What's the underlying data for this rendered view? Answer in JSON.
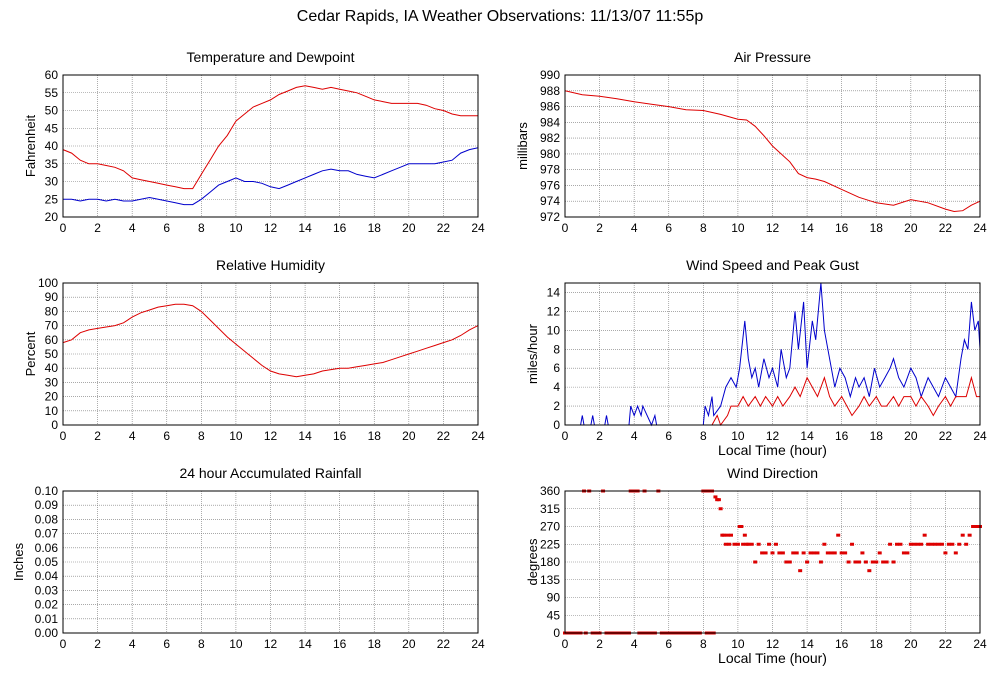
{
  "title": "Cedar Rapids, IA Weather Observations: 11/13/07 11:55p",
  "colors": {
    "red": "#dd0000",
    "blue": "#0000cc",
    "grid": "#777777",
    "frame": "#000000"
  },
  "chart_data": [
    {
      "id": "temp",
      "type": "line",
      "title": "Temperature and Dewpoint",
      "xlabel": "",
      "ylabel": "Fahrenheit",
      "xlim": [
        0,
        24
      ],
      "ylim": [
        20,
        60
      ],
      "xticks": [
        0,
        2,
        4,
        6,
        8,
        10,
        12,
        14,
        16,
        18,
        20,
        22,
        24
      ],
      "yticks": [
        20,
        25,
        30,
        35,
        40,
        45,
        50,
        55,
        60
      ],
      "grid": true,
      "series": [
        {
          "color": "#dd0000",
          "x": [
            0,
            0.5,
            1,
            1.5,
            2,
            2.5,
            3,
            3.5,
            4,
            4.5,
            5,
            5.5,
            6,
            6.5,
            7,
            7.5,
            8,
            8.5,
            9,
            9.5,
            10,
            10.5,
            11,
            11.5,
            12,
            12.5,
            13,
            13.5,
            14,
            14.5,
            15,
            15.5,
            16,
            16.5,
            17,
            17.5,
            18,
            18.5,
            19,
            19.5,
            20,
            20.5,
            21,
            21.5,
            22,
            22.5,
            23,
            23.5,
            24
          ],
          "y": [
            39,
            38,
            36,
            35,
            35,
            34.5,
            34,
            33,
            31,
            30.5,
            30,
            29.5,
            29,
            28.5,
            28,
            28,
            32,
            36,
            40,
            43,
            47,
            49,
            51,
            52,
            53,
            54.5,
            55.5,
            56.5,
            57,
            56.5,
            56,
            56.5,
            56,
            55.5,
            55,
            54,
            53,
            52.5,
            52,
            52,
            52,
            52,
            51.5,
            50.5,
            50,
            49,
            48.5,
            48.5,
            48.5
          ]
        },
        {
          "color": "#0000cc",
          "x": [
            0,
            0.5,
            1,
            1.5,
            2,
            2.5,
            3,
            3.5,
            4,
            4.5,
            5,
            5.5,
            6,
            6.5,
            7,
            7.5,
            8,
            8.5,
            9,
            9.5,
            10,
            10.5,
            11,
            11.5,
            12,
            12.5,
            13,
            13.5,
            14,
            14.5,
            15,
            15.5,
            16,
            16.5,
            17,
            17.5,
            18,
            18.5,
            19,
            19.5,
            20,
            20.5,
            21,
            21.5,
            22,
            22.5,
            23,
            23.5,
            24
          ],
          "y": [
            25,
            25,
            24.5,
            25,
            25,
            24.5,
            25,
            24.5,
            24.5,
            25,
            25.5,
            25,
            24.5,
            24,
            23.5,
            23.5,
            25,
            27,
            29,
            30,
            31,
            30,
            30,
            29.5,
            28.5,
            28,
            29,
            30,
            31,
            32,
            33,
            33.5,
            33,
            33,
            32,
            31.5,
            31,
            32,
            33,
            34,
            35,
            35,
            35,
            35,
            35.5,
            36,
            38,
            39,
            39.5
          ]
        }
      ]
    },
    {
      "id": "pressure",
      "type": "line",
      "title": "Air Pressure",
      "xlabel": "",
      "ylabel": "millibars",
      "xlim": [
        0,
        24
      ],
      "ylim": [
        972,
        990
      ],
      "xticks": [
        0,
        2,
        4,
        6,
        8,
        10,
        12,
        14,
        16,
        18,
        20,
        22,
        24
      ],
      "yticks": [
        972,
        974,
        976,
        978,
        980,
        982,
        984,
        986,
        988,
        990
      ],
      "grid": true,
      "series": [
        {
          "color": "#dd0000",
          "x": [
            0,
            1,
            2,
            3,
            4,
            5,
            6,
            7,
            8,
            9,
            10,
            10.5,
            11,
            11.5,
            12,
            12.5,
            13,
            13.5,
            14,
            14.5,
            15,
            16,
            17,
            18,
            19,
            20,
            21,
            22,
            22.5,
            23,
            23.5,
            24
          ],
          "y": [
            988,
            987.5,
            987.3,
            987,
            986.6,
            986.3,
            986,
            985.6,
            985.5,
            985,
            984.4,
            984.3,
            983.5,
            982.3,
            981,
            980,
            979,
            977.5,
            977,
            976.8,
            976.5,
            975.5,
            974.5,
            973.8,
            973.5,
            974.2,
            973.8,
            973,
            972.7,
            972.8,
            973.5,
            974
          ]
        }
      ]
    },
    {
      "id": "humidity",
      "type": "line",
      "title": "Relative Humidity",
      "xlabel": "",
      "ylabel": "Percent",
      "xlim": [
        0,
        24
      ],
      "ylim": [
        0,
        100
      ],
      "xticks": [
        0,
        2,
        4,
        6,
        8,
        10,
        12,
        14,
        16,
        18,
        20,
        22,
        24
      ],
      "yticks": [
        0,
        10,
        20,
        30,
        40,
        50,
        60,
        70,
        80,
        90,
        100
      ],
      "grid": true,
      "series": [
        {
          "color": "#dd0000",
          "x": [
            0,
            0.5,
            1,
            1.5,
            2,
            2.5,
            3,
            3.5,
            4,
            4.5,
            5,
            5.5,
            6,
            6.5,
            7,
            7.5,
            8,
            8.5,
            9,
            9.5,
            10,
            10.5,
            11,
            11.5,
            12,
            12.5,
            13,
            13.5,
            14,
            14.5,
            15,
            15.5,
            16,
            16.5,
            17,
            17.5,
            18,
            18.5,
            19,
            19.5,
            20,
            20.5,
            21,
            21.5,
            22,
            22.5,
            23,
            23.5,
            24
          ],
          "y": [
            58,
            60,
            65,
            67,
            68,
            69,
            70,
            72,
            76,
            79,
            81,
            83,
            84,
            85,
            85,
            84,
            80,
            74,
            68,
            62,
            57,
            52,
            47,
            42,
            38,
            36,
            35,
            34,
            35,
            36,
            38,
            39,
            40,
            40,
            41,
            42,
            43,
            44,
            46,
            48,
            50,
            52,
            54,
            56,
            58,
            60,
            63,
            67,
            70
          ]
        }
      ]
    },
    {
      "id": "wind",
      "type": "line",
      "title": "Wind Speed and Peak Gust",
      "xlabel": "Local Time (hour)",
      "ylabel": "miles/hour",
      "xlim": [
        0,
        24
      ],
      "ylim": [
        0,
        15
      ],
      "xticks": [
        0,
        2,
        4,
        6,
        8,
        10,
        12,
        14,
        16,
        18,
        20,
        22,
        24
      ],
      "yticks": [
        0,
        2,
        4,
        6,
        8,
        10,
        12,
        14
      ],
      "grid": true,
      "series": [
        {
          "color": "#0000cc",
          "x": [
            0,
            0.9,
            1.0,
            1.1,
            1.5,
            1.6,
            1.7,
            2.3,
            2.4,
            2.5,
            3.7,
            3.8,
            4.0,
            4.2,
            4.4,
            4.5,
            5.0,
            5.2,
            5.3,
            8.0,
            8.1,
            8.3,
            8.5,
            8.6,
            9.0,
            9.3,
            9.6,
            9.9,
            10.1,
            10.4,
            10.6,
            10.8,
            11.0,
            11.2,
            11.5,
            11.8,
            12.0,
            12.3,
            12.5,
            12.8,
            13.0,
            13.3,
            13.5,
            13.8,
            14.0,
            14.3,
            14.5,
            14.8,
            15.0,
            15.3,
            15.6,
            15.9,
            16.2,
            16.5,
            16.8,
            17.0,
            17.3,
            17.6,
            17.9,
            18.2,
            18.5,
            18.8,
            19.0,
            19.3,
            19.6,
            20.0,
            20.3,
            20.6,
            21.0,
            21.3,
            21.6,
            22.0,
            22.3,
            22.6,
            22.9,
            23.1,
            23.3,
            23.5,
            23.7,
            23.9,
            24
          ],
          "y": [
            0,
            0,
            1,
            0,
            0,
            1,
            0,
            0,
            1,
            0,
            0,
            2,
            1,
            2,
            1,
            2,
            0,
            1,
            0,
            0,
            2,
            1,
            3,
            1,
            2,
            4,
            5,
            4,
            6,
            11,
            7,
            5,
            6,
            4,
            7,
            5,
            6,
            4,
            8,
            5,
            6,
            12,
            8,
            13,
            6,
            11,
            9,
            15,
            10,
            7,
            4,
            6,
            5,
            3,
            5,
            4,
            5,
            3,
            6,
            4,
            5,
            6,
            7,
            5,
            4,
            6,
            5,
            3,
            5,
            4,
            3,
            5,
            4,
            3,
            7,
            9,
            8,
            13,
            10,
            11,
            8
          ]
        },
        {
          "color": "#dd0000",
          "x": [
            0,
            8.5,
            8.8,
            9.0,
            9.4,
            9.6,
            10.0,
            10.3,
            10.6,
            11.0,
            11.3,
            11.6,
            12.0,
            12.3,
            12.6,
            13.0,
            13.3,
            13.6,
            14.0,
            14.3,
            14.6,
            15.0,
            15.3,
            15.6,
            16.0,
            16.3,
            16.6,
            17.0,
            17.3,
            17.6,
            18.0,
            18.3,
            18.6,
            19.0,
            19.3,
            19.6,
            20.0,
            20.3,
            20.6,
            21.0,
            21.3,
            21.6,
            22.0,
            22.3,
            22.6,
            22.9,
            23.2,
            23.5,
            23.8,
            24
          ],
          "y": [
            0,
            0,
            1,
            0,
            1,
            2,
            2,
            3,
            2,
            3,
            2,
            3,
            2,
            3,
            2,
            3,
            4,
            3,
            5,
            4,
            3,
            5,
            3,
            2,
            3,
            2,
            1,
            2,
            3,
            2,
            3,
            2,
            2,
            3,
            2,
            3,
            3,
            2,
            3,
            2,
            1,
            2,
            3,
            2,
            3,
            3,
            3,
            5,
            3,
            3
          ]
        }
      ]
    },
    {
      "id": "rain",
      "type": "line",
      "title": "24 hour Accumulated Rainfall",
      "xlabel": "",
      "ylabel": "Inches",
      "xlim": [
        0,
        24
      ],
      "ylim": [
        0,
        0.1
      ],
      "xticks": [
        0,
        2,
        4,
        6,
        8,
        10,
        12,
        14,
        16,
        18,
        20,
        22,
        24
      ],
      "yticks": [
        "0.00",
        "0.01",
        "0.02",
        "0.03",
        "0.04",
        "0.05",
        "0.06",
        "0.07",
        "0.08",
        "0.09",
        "0.10"
      ],
      "grid": true,
      "series": [
        {
          "color": "#dd0000",
          "x": [
            0,
            24
          ],
          "y": [
            0,
            0
          ]
        }
      ]
    },
    {
      "id": "winddir",
      "type": "scatter",
      "title": "Wind Direction",
      "xlabel": "Local Time (hour)",
      "ylabel": "degrees",
      "xlim": [
        0,
        24
      ],
      "ylim": [
        0,
        360
      ],
      "xticks": [
        0,
        2,
        4,
        6,
        8,
        10,
        12,
        14,
        16,
        18,
        20,
        22,
        24
      ],
      "yticks": [
        0,
        45,
        90,
        135,
        180,
        225,
        270,
        315,
        360
      ],
      "grid": true,
      "series": [
        {
          "color": "#dd0000",
          "x": [
            0.0,
            0.2,
            0.4,
            0.6,
            0.8,
            0.9,
            1.1,
            1.2,
            1.4,
            1.6,
            1.8,
            2.0,
            2.2,
            2.4,
            2.5,
            2.7,
            2.9,
            3.1,
            3.3,
            3.5,
            3.7,
            3.8,
            3.9,
            4.0,
            4.1,
            4.2,
            4.3,
            4.4,
            4.5,
            4.6,
            4.7,
            4.8,
            4.9,
            5.0,
            5.2,
            5.4,
            5.6,
            5.7,
            5.8,
            6.0,
            6.2,
            6.4,
            6.6,
            6.8,
            7.0,
            7.2,
            7.4,
            7.6,
            7.8,
            8.0,
            8.1,
            8.2,
            8.3,
            8.4,
            8.5,
            8.6,
            8.7,
            8.8,
            8.9,
            9.0,
            9.1,
            9.2,
            9.3,
            9.4,
            9.5,
            9.6,
            9.8,
            10.0,
            10.1,
            10.2,
            10.3,
            10.4,
            10.5,
            10.6,
            10.8,
            11.0,
            11.2,
            11.4,
            11.6,
            11.8,
            12.0,
            12.2,
            12.4,
            12.6,
            12.8,
            13.0,
            13.2,
            13.4,
            13.6,
            13.8,
            14.0,
            14.2,
            14.4,
            14.6,
            14.8,
            15.0,
            15.2,
            15.4,
            15.6,
            15.8,
            16.0,
            16.2,
            16.4,
            16.6,
            16.8,
            17.0,
            17.2,
            17.4,
            17.6,
            17.8,
            18.0,
            18.2,
            18.4,
            18.6,
            18.8,
            19.0,
            19.2,
            19.4,
            19.6,
            19.8,
            20.0,
            20.2,
            20.4,
            20.6,
            20.8,
            21.0,
            21.2,
            21.4,
            21.6,
            21.8,
            22.0,
            22.2,
            22.4,
            22.6,
            22.8,
            23.0,
            23.2,
            23.4,
            23.6,
            23.8,
            24.0
          ],
          "y": [
            0,
            0,
            0,
            0,
            0,
            0,
            360,
            0,
            360,
            0,
            0,
            0,
            360,
            0,
            0,
            0,
            0,
            0,
            0,
            0,
            0,
            360,
            360,
            360,
            360,
            360,
            0,
            0,
            0,
            360,
            0,
            0,
            0,
            0,
            0,
            360,
            0,
            0,
            0,
            0,
            0,
            0,
            0,
            0,
            0,
            0,
            0,
            0,
            0,
            360,
            360,
            0,
            360,
            0,
            360,
            0,
            345,
            338,
            338,
            315,
            248,
            248,
            225,
            248,
            225,
            248,
            225,
            225,
            270,
            270,
            225,
            248,
            225,
            225,
            225,
            180,
            225,
            203,
            203,
            225,
            203,
            225,
            203,
            203,
            180,
            180,
            203,
            203,
            158,
            203,
            180,
            203,
            203,
            203,
            180,
            225,
            203,
            203,
            203,
            248,
            203,
            203,
            180,
            225,
            180,
            180,
            203,
            180,
            158,
            180,
            180,
            203,
            180,
            180,
            225,
            180,
            225,
            225,
            203,
            203,
            225,
            225,
            225,
            225,
            248,
            225,
            225,
            225,
            225,
            225,
            203,
            225,
            225,
            203,
            225,
            248,
            225,
            248,
            270,
            270,
            270
          ]
        }
      ]
    }
  ]
}
